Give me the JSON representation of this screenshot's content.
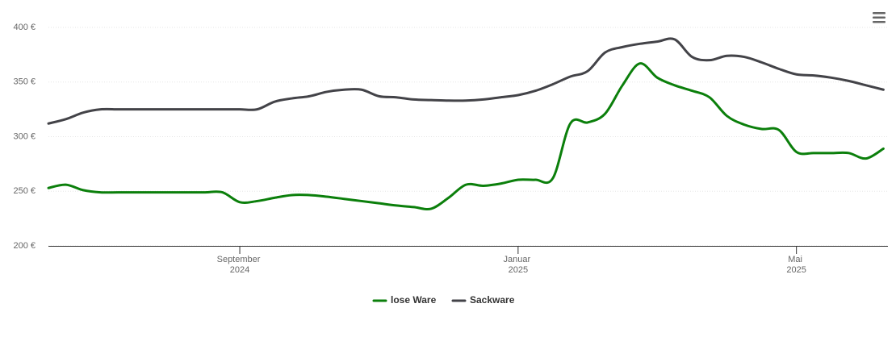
{
  "chart_data": {
    "type": "line",
    "categories": [
      null,
      null,
      null,
      null,
      null,
      null,
      null,
      null,
      null,
      null,
      null,
      "September 2024",
      null,
      null,
      null,
      null,
      null,
      null,
      null,
      null,
      null,
      null,
      null,
      null,
      null,
      null,
      null,
      "Januar 2025",
      null,
      null,
      null,
      null,
      null,
      null,
      null,
      null,
      null,
      null,
      null,
      null,
      null,
      null,
      null,
      "Mai 2025",
      null,
      null,
      null,
      null,
      null
    ],
    "series": [
      {
        "name": "lose Ware",
        "color": "#0b7f0b",
        "values": [
          253,
          256,
          251,
          249,
          249,
          249,
          249,
          249,
          249,
          249,
          249,
          240,
          241,
          244,
          246.5,
          246.5,
          245,
          243,
          241,
          239,
          237,
          235.5,
          234,
          244,
          256,
          255,
          257,
          260.5,
          260.5,
          262,
          312,
          313,
          321,
          347,
          367,
          354,
          347,
          342,
          336,
          319,
          311,
          307,
          306,
          286,
          285,
          285,
          285,
          280,
          289
        ]
      },
      {
        "name": "Sackware",
        "color": "#434348",
        "values": [
          312,
          316,
          322,
          325,
          325,
          325,
          325,
          325,
          325,
          325,
          325,
          325,
          325,
          332,
          335,
          337,
          341,
          343,
          343,
          337,
          336,
          334,
          333.5,
          333,
          333,
          334,
          336,
          338,
          342,
          348,
          355,
          360,
          377,
          382,
          385,
          387,
          389,
          373,
          370,
          374,
          373,
          368,
          362,
          357,
          356,
          354,
          351,
          347,
          343
        ]
      }
    ],
    "ylim": [
      200,
      400
    ],
    "yticks": [
      {
        "value": 200,
        "label": "200 €"
      },
      {
        "value": 250,
        "label": "250 €"
      },
      {
        "value": 300,
        "label": "300 €"
      },
      {
        "value": 350,
        "label": "350 €"
      },
      {
        "value": 400,
        "label": "400 €"
      }
    ],
    "grid": true
  }
}
